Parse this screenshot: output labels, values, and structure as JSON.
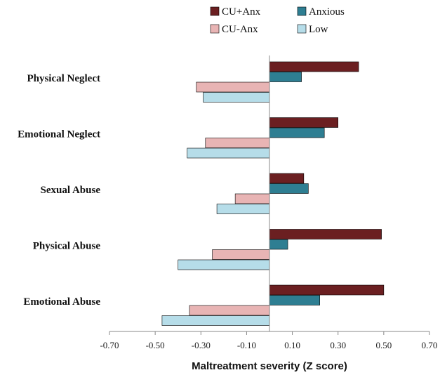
{
  "chart_data": {
    "type": "bar",
    "orientation": "horizontal",
    "categories": [
      "Physical Neglect",
      "Emotional Neglect",
      "Sexual Abuse",
      "Physical Abuse",
      "Emotional Abuse"
    ],
    "series": [
      {
        "name": "CU+Anx",
        "color": "#6B1F21",
        "values": [
          0.39,
          0.3,
          0.15,
          0.49,
          0.5
        ]
      },
      {
        "name": "Anxious",
        "color": "#2E7E92",
        "values": [
          0.14,
          0.24,
          0.17,
          0.08,
          0.22
        ]
      },
      {
        "name": "CU-Anx",
        "color": "#E8B4B4",
        "values": [
          -0.32,
          -0.28,
          -0.15,
          -0.25,
          -0.35
        ]
      },
      {
        "name": "Low",
        "color": "#B6DDE9",
        "values": [
          -0.29,
          -0.36,
          -0.23,
          -0.4,
          -0.47
        ]
      }
    ],
    "xlim": [
      -0.7,
      0.7
    ],
    "xticks": [
      "-0.70",
      "-0.50",
      "-0.30",
      "-0.10",
      "0.10",
      "0.30",
      "0.50",
      "0.70"
    ],
    "xlabel": "Maltreatment severity (Z score)",
    "ylabel": "",
    "title": "",
    "grid": false,
    "legend_position": "top-center"
  }
}
